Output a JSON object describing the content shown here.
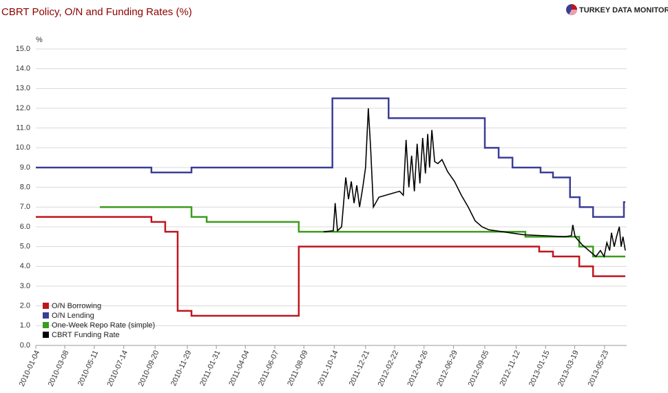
{
  "brand": "TURKEY DATA MONITOR",
  "chart_data": {
    "type": "line",
    "title": "CBRT Policy, O/N and Funding Rates (%)",
    "y_label": "%",
    "xlim": [
      "2010-01-04",
      "2013-07-10"
    ],
    "xticks": [
      "2010-01-04",
      "2010-03-08",
      "2010-05-11",
      "2010-07-14",
      "2010-09-20",
      "2010-11-29",
      "2011-01-31",
      "2011-04-04",
      "2011-06-07",
      "2011-08-09",
      "2011-10-14",
      "2011-12-21",
      "2012-02-22",
      "2012-04-26",
      "2012-06-29",
      "2012-09-05",
      "2012-11-12",
      "2013-01-15",
      "2013-03-19",
      "2013-05-23"
    ],
    "ylim": [
      0,
      15
    ],
    "yticks": [
      {
        "value": 0,
        "label": "0.0"
      },
      {
        "value": 1,
        "label": "1.0"
      },
      {
        "value": 2,
        "label": "2.0"
      },
      {
        "value": 3,
        "label": "3.0"
      },
      {
        "value": 4,
        "label": "4.0"
      },
      {
        "value": 5,
        "label": "5.0"
      },
      {
        "value": 6,
        "label": "6.0"
      },
      {
        "value": 7,
        "label": "7.0"
      },
      {
        "value": 8,
        "label": "8.0"
      },
      {
        "value": 9,
        "label": "9.0"
      },
      {
        "value": 10,
        "label": "10.0"
      },
      {
        "value": 11,
        "label": "11.0"
      },
      {
        "value": 12,
        "label": "12.0"
      },
      {
        "value": 13,
        "label": "13.0"
      },
      {
        "value": 14,
        "label": "14.0"
      },
      {
        "value": 15,
        "label": "15.0"
      }
    ],
    "grid": true,
    "legend": "lower left",
    "series": [
      {
        "name": "O/N Borrowing",
        "color": "#c0141c",
        "step": true,
        "x": [
          "2010-01-04",
          "2010-09-12",
          "2010-10-12",
          "2010-11-08",
          "2010-12-08",
          "2011-07-29",
          "2013-01-01",
          "2013-01-31",
          "2013-03-29",
          "2013-04-28",
          "2013-07-07"
        ],
        "values": [
          6.5,
          6.25,
          5.75,
          1.75,
          1.5,
          5.0,
          4.75,
          4.5,
          4.0,
          3.5,
          3.5
        ]
      },
      {
        "name": "O/N Lending",
        "color": "#3a3d96",
        "step": true,
        "x": [
          "2010-01-04",
          "2010-09-12",
          "2010-12-08",
          "2011-10-10",
          "2012-02-09",
          "2012-09-05",
          "2012-10-05",
          "2012-11-04",
          "2013-01-04",
          "2013-01-31",
          "2013-03-09",
          "2013-03-30",
          "2013-04-28",
          "2013-07-04",
          "2013-07-07"
        ],
        "values": [
          9.0,
          8.75,
          9.0,
          12.5,
          11.5,
          10.0,
          9.5,
          9.0,
          8.75,
          8.5,
          7.5,
          7.0,
          6.5,
          7.25,
          7.25
        ]
      },
      {
        "name": "One-Week Repo Rate (simple)",
        "color": "#3c9c1c",
        "step": true,
        "x": [
          "2010-05-23",
          "2010-12-08",
          "2011-01-10",
          "2011-07-29",
          "2012-12-02",
          "2013-03-29",
          "2013-04-28",
          "2013-07-07"
        ],
        "values": [
          7.0,
          6.5,
          6.25,
          5.75,
          5.5,
          5.0,
          4.5,
          4.5
        ]
      },
      {
        "name": "CBRT Funding Rate",
        "color": "#000000",
        "step": false,
        "x": [
          "2011-09-21",
          "2011-10-12",
          "2011-10-16",
          "2011-10-21",
          "2011-10-30",
          "2011-11-08",
          "2011-11-14",
          "2011-11-20",
          "2011-11-26",
          "2011-12-02",
          "2011-12-08",
          "2011-12-15",
          "2011-12-21",
          "2011-12-27",
          "2012-01-01",
          "2012-01-07",
          "2012-01-19",
          "2012-02-03",
          "2012-02-18",
          "2012-03-04",
          "2012-03-12",
          "2012-03-18",
          "2012-03-24",
          "2012-03-30",
          "2012-04-05",
          "2012-04-11",
          "2012-04-17",
          "2012-04-23",
          "2012-04-29",
          "2012-05-04",
          "2012-05-08",
          "2012-05-13",
          "2012-05-19",
          "2012-05-26",
          "2012-06-04",
          "2012-06-16",
          "2012-07-01",
          "2012-07-16",
          "2012-07-31",
          "2012-08-15",
          "2012-08-30",
          "2012-09-14",
          "2012-10-14",
          "2012-11-28",
          "2013-01-12",
          "2013-02-25",
          "2013-03-12",
          "2013-03-15",
          "2013-03-20",
          "2013-04-04",
          "2013-04-19",
          "2013-05-04",
          "2013-05-14",
          "2013-05-22",
          "2013-05-28",
          "2013-06-03",
          "2013-06-07",
          "2013-06-13",
          "2013-06-18",
          "2013-06-24",
          "2013-06-28",
          "2013-07-02",
          "2013-07-07"
        ],
        "values": [
          5.75,
          5.8,
          7.2,
          5.8,
          6.0,
          8.5,
          7.4,
          8.3,
          7.2,
          8.1,
          7.0,
          8.0,
          9.0,
          12.0,
          10.0,
          7.0,
          7.5,
          7.6,
          7.7,
          7.8,
          7.6,
          10.4,
          8.0,
          9.6,
          7.8,
          10.2,
          8.2,
          10.5,
          8.7,
          10.7,
          9.0,
          10.9,
          9.3,
          9.2,
          9.4,
          8.8,
          8.3,
          7.6,
          7.0,
          6.3,
          6.0,
          5.85,
          5.75,
          5.6,
          5.55,
          5.5,
          5.55,
          6.1,
          5.5,
          5.1,
          4.8,
          4.5,
          4.8,
          4.5,
          5.2,
          4.8,
          5.7,
          5.0,
          5.5,
          6.0,
          5.0,
          5.5,
          4.8
        ]
      }
    ]
  }
}
